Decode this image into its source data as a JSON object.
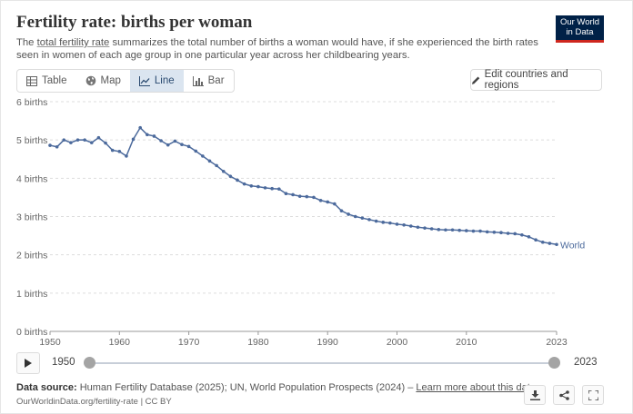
{
  "header": {
    "title": "Fertility rate: births per woman",
    "subtitle_pre": "The ",
    "subtitle_link": "total fertility rate",
    "subtitle_post": " summarizes the total number of births a woman would have, if she experienced the birth rates seen in women of each age group in one particular year across her childbearing years.",
    "logo_line1": "Our World",
    "logo_line2": "in Data"
  },
  "tabs": [
    {
      "label": "Table",
      "icon": "table-icon"
    },
    {
      "label": "Map",
      "icon": "globe-icon"
    },
    {
      "label": "Line",
      "icon": "line-chart-icon",
      "active": true
    },
    {
      "label": "Bar",
      "icon": "bar-chart-icon"
    }
  ],
  "edit_button": {
    "label": "Edit countries and regions",
    "icon": "pencil-icon"
  },
  "timeline": {
    "start": "1950",
    "end": "2023"
  },
  "footer": {
    "source_label": "Data source:",
    "source_text": " Human Fertility Database (2025); UN, World Population Prospects (2024) – ",
    "learn_more": "Learn more about this data",
    "url_line": "OurWorldinData.org/fertility-rate | CC BY"
  },
  "colors": {
    "series": "#4c6a9c",
    "grid": "#dddddd",
    "brand": "#002147",
    "brand_accent": "#ce261e"
  },
  "chart_data": {
    "type": "line",
    "title": "Fertility rate: births per woman",
    "ylim": [
      0,
      6
    ],
    "xlim": [
      1950,
      2023
    ],
    "y_ticks": [
      "0 births",
      "1 births",
      "2 births",
      "3 births",
      "4 births",
      "5 births",
      "6 births"
    ],
    "x_ticks": [
      "1950",
      "1960",
      "1970",
      "1980",
      "1990",
      "2000",
      "2010",
      "2023"
    ],
    "series": [
      {
        "name": "World",
        "x": [
          1950,
          1951,
          1952,
          1953,
          1954,
          1955,
          1956,
          1957,
          1958,
          1959,
          1960,
          1961,
          1962,
          1963,
          1964,
          1965,
          1966,
          1967,
          1968,
          1969,
          1970,
          1971,
          1972,
          1973,
          1974,
          1975,
          1976,
          1977,
          1978,
          1979,
          1980,
          1981,
          1982,
          1983,
          1984,
          1985,
          1986,
          1987,
          1988,
          1989,
          1990,
          1991,
          1992,
          1993,
          1994,
          1995,
          1996,
          1997,
          1998,
          1999,
          2000,
          2001,
          2002,
          2003,
          2004,
          2005,
          2006,
          2007,
          2008,
          2009,
          2010,
          2011,
          2012,
          2013,
          2014,
          2015,
          2016,
          2017,
          2018,
          2019,
          2020,
          2021,
          2022,
          2023
        ],
        "values": [
          4.86,
          4.82,
          5.0,
          4.93,
          5.0,
          5.0,
          4.93,
          5.06,
          4.92,
          4.73,
          4.7,
          4.58,
          5.02,
          5.32,
          5.14,
          5.1,
          4.98,
          4.87,
          4.97,
          4.88,
          4.83,
          4.71,
          4.58,
          4.45,
          4.33,
          4.18,
          4.05,
          3.95,
          3.85,
          3.8,
          3.78,
          3.75,
          3.73,
          3.72,
          3.6,
          3.57,
          3.53,
          3.52,
          3.5,
          3.42,
          3.38,
          3.33,
          3.15,
          3.06,
          3.0,
          2.96,
          2.92,
          2.88,
          2.85,
          2.83,
          2.8,
          2.78,
          2.75,
          2.72,
          2.7,
          2.68,
          2.66,
          2.65,
          2.65,
          2.64,
          2.63,
          2.62,
          2.62,
          2.6,
          2.59,
          2.58,
          2.56,
          2.55,
          2.52,
          2.47,
          2.39,
          2.33,
          2.3,
          2.27
        ]
      }
    ],
    "series_label": "World",
    "grid": true
  }
}
